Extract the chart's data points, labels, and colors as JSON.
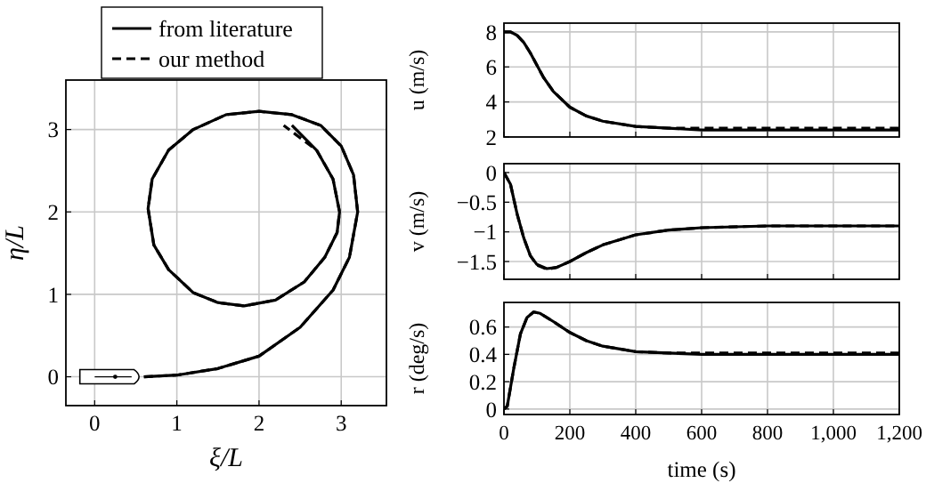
{
  "chart_data": [
    {
      "type": "line",
      "xlabel": "ξ/L",
      "ylabel": "η/L",
      "xlim": [
        -0.35,
        3.55
      ],
      "ylim": [
        -0.35,
        3.6
      ],
      "xticks": [
        0,
        1,
        2,
        3
      ],
      "yticks": [
        0,
        1,
        2,
        3
      ],
      "grid": true,
      "legend": "top",
      "series": [
        {
          "name": "from literature",
          "color": "#000000",
          "line_style": "solid",
          "x": [
            0.6,
            1.0,
            1.5,
            2.0,
            2.5,
            2.9,
            3.1,
            3.2,
            3.15,
            3.0,
            2.75,
            2.4,
            2.0,
            1.6,
            1.2,
            0.9,
            0.7,
            0.65,
            0.72,
            0.9,
            1.2,
            1.5,
            1.82,
            2.2,
            2.55,
            2.8,
            2.95,
            2.98,
            2.9,
            2.7,
            2.4
          ],
          "values": [
            0,
            0.02,
            0.1,
            0.25,
            0.6,
            1.05,
            1.45,
            2.0,
            2.45,
            2.8,
            3.05,
            3.18,
            3.22,
            3.18,
            3.0,
            2.75,
            2.4,
            2.04,
            1.6,
            1.3,
            1.02,
            0.9,
            0.86,
            0.93,
            1.15,
            1.45,
            1.75,
            2.0,
            2.4,
            2.75,
            3.05
          ]
        },
        {
          "name": "our method",
          "color": "#000000",
          "line_style": "dashed",
          "x": [
            0.6,
            1.0,
            1.5,
            2.0,
            2.5,
            2.9,
            3.1,
            3.2,
            3.15,
            3.0,
            2.75,
            2.4,
            2.0,
            1.6,
            1.2,
            0.9,
            0.7,
            0.65,
            0.72,
            0.9,
            1.2,
            1.5,
            1.82,
            2.2,
            2.55,
            2.8,
            2.95,
            2.98,
            2.9,
            2.7,
            2.3
          ],
          "values": [
            0,
            0.02,
            0.1,
            0.25,
            0.6,
            1.05,
            1.45,
            2.0,
            2.45,
            2.8,
            3.05,
            3.18,
            3.22,
            3.18,
            3.0,
            2.75,
            2.4,
            2.04,
            1.6,
            1.3,
            1.02,
            0.9,
            0.86,
            0.93,
            1.15,
            1.45,
            1.75,
            2.0,
            2.4,
            2.75,
            3.05
          ]
        }
      ]
    },
    {
      "type": "line",
      "ylabel": "u (m/s)",
      "xlim": [
        0,
        1200
      ],
      "ylim": [
        2,
        8.5
      ],
      "xticks": [
        0,
        200,
        400,
        600,
        800,
        1000,
        1200
      ],
      "yticks": [
        2,
        4,
        6,
        8
      ],
      "grid": true,
      "tick_labels": "y",
      "series": [
        {
          "color": "#000000",
          "line_style": "solid",
          "x": [
            0,
            20,
            40,
            60,
            80,
            100,
            120,
            150,
            200,
            250,
            300,
            400,
            500,
            600,
            800,
            1200
          ],
          "values": [
            8,
            8,
            7.8,
            7.4,
            6.8,
            6.1,
            5.4,
            4.6,
            3.7,
            3.2,
            2.9,
            2.6,
            2.5,
            2.4,
            2.4,
            2.4
          ]
        },
        {
          "color": "#000000",
          "line_style": "dashed",
          "x": [
            0,
            20,
            40,
            60,
            80,
            100,
            120,
            150,
            200,
            250,
            300,
            400,
            500,
            600,
            800,
            1200
          ],
          "values": [
            8,
            8,
            7.8,
            7.4,
            6.8,
            6.1,
            5.4,
            4.6,
            3.7,
            3.2,
            2.9,
            2.6,
            2.5,
            2.5,
            2.5,
            2.5
          ]
        }
      ]
    },
    {
      "type": "line",
      "ylabel": "v (m/s)",
      "xlim": [
        0,
        1200
      ],
      "ylim": [
        -1.8,
        0.15
      ],
      "xticks": [
        0,
        200,
        400,
        600,
        800,
        1000,
        1200
      ],
      "yticks": [
        {
          "value": -1.5,
          "label": "−1.5"
        },
        {
          "value": -1,
          "label": "−1"
        },
        {
          "value": -0.5,
          "label": "−0.5"
        },
        0
      ],
      "grid": true,
      "tick_labels": "y",
      "series": [
        {
          "color": "#000000",
          "line_style": "solid",
          "x": [
            0,
            20,
            40,
            60,
            80,
            100,
            130,
            160,
            200,
            250,
            300,
            400,
            500,
            600,
            800,
            1200
          ],
          "values": [
            0,
            -0.2,
            -0.7,
            -1.1,
            -1.4,
            -1.55,
            -1.62,
            -1.6,
            -1.5,
            -1.35,
            -1.22,
            -1.05,
            -0.97,
            -0.93,
            -0.9,
            -0.9
          ]
        },
        {
          "color": "#000000",
          "line_style": "dashed",
          "x": [
            0,
            20,
            40,
            60,
            80,
            100,
            130,
            160,
            200,
            250,
            300,
            400,
            500,
            600,
            800,
            1200
          ],
          "values": [
            0,
            -0.2,
            -0.7,
            -1.1,
            -1.4,
            -1.56,
            -1.63,
            -1.6,
            -1.5,
            -1.35,
            -1.22,
            -1.05,
            -0.97,
            -0.93,
            -0.9,
            -0.9
          ]
        }
      ]
    },
    {
      "type": "line",
      "ylabel": "r (deg/s)",
      "xlabel": "time (s)",
      "xlim": [
        0,
        1200
      ],
      "ylim": [
        -0.04,
        0.78
      ],
      "xticks": [
        0,
        200,
        400,
        600,
        800,
        {
          "value": 1000,
          "label": "1,000"
        },
        {
          "value": 1200,
          "label": "1,200"
        }
      ],
      "yticks": [
        0,
        0.2,
        0.4,
        0.6
      ],
      "grid": true,
      "series": [
        {
          "color": "#000000",
          "line_style": "solid",
          "x": [
            0,
            10,
            30,
            50,
            70,
            90,
            110,
            150,
            200,
            250,
            300,
            400,
            500,
            600,
            1200
          ],
          "values": [
            0,
            0.02,
            0.3,
            0.55,
            0.67,
            0.71,
            0.7,
            0.64,
            0.56,
            0.5,
            0.46,
            0.42,
            0.41,
            0.4,
            0.4
          ]
        },
        {
          "color": "#000000",
          "line_style": "dashed",
          "x": [
            0,
            10,
            30,
            50,
            70,
            90,
            110,
            150,
            200,
            250,
            300,
            400,
            500,
            600,
            1200
          ],
          "values": [
            0,
            0.02,
            0.3,
            0.55,
            0.67,
            0.71,
            0.7,
            0.64,
            0.56,
            0.5,
            0.46,
            0.42,
            0.41,
            0.41,
            0.41
          ]
        }
      ]
    }
  ]
}
